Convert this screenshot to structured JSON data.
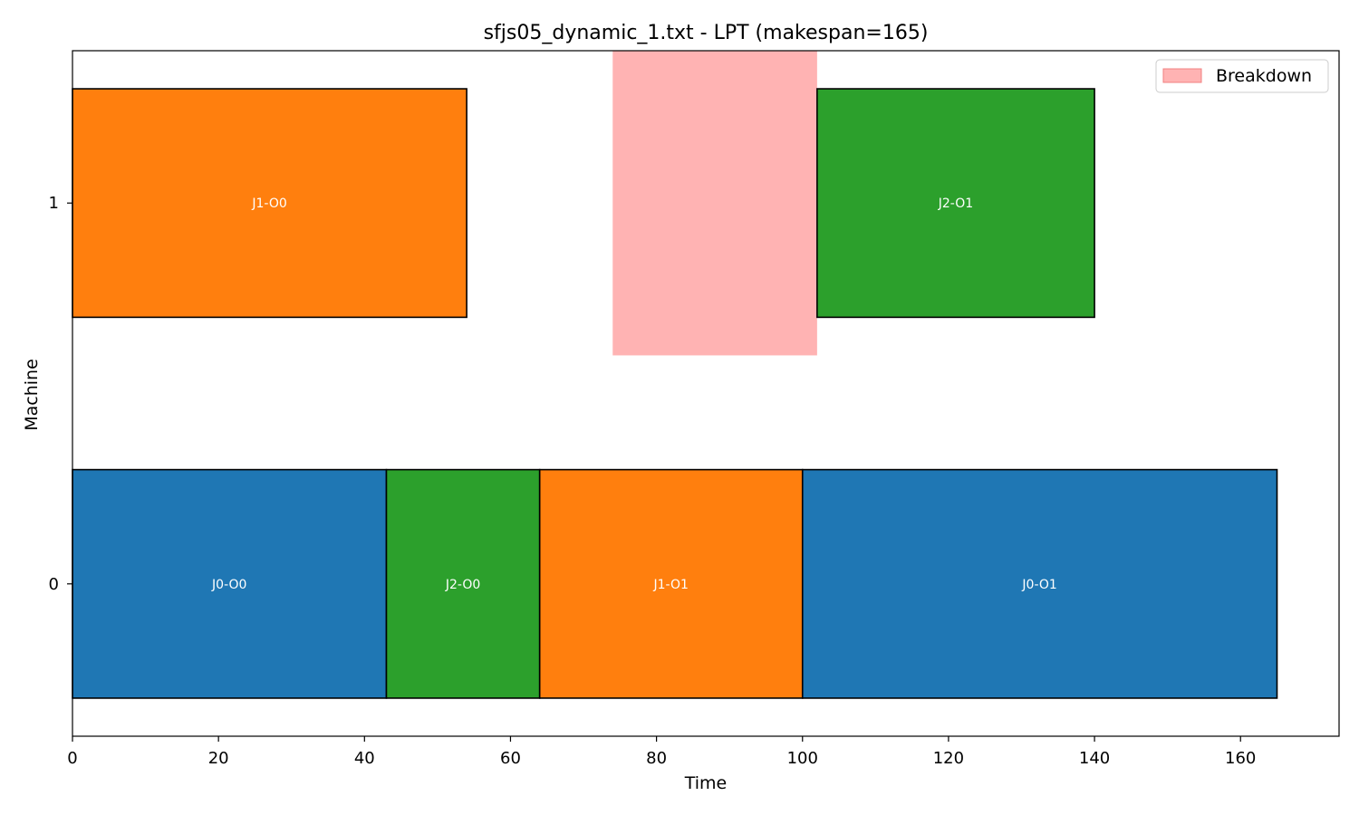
{
  "chart_data": {
    "type": "gantt",
    "title": "sfjs05_dynamic_1.txt - LPT (makespan=165)",
    "xlabel": "Time",
    "ylabel": "Machine",
    "xlim": [
      0,
      173.5
    ],
    "ylim": [
      -0.4,
      1.4
    ],
    "xticks": [
      0,
      20,
      40,
      60,
      80,
      100,
      120,
      140,
      160
    ],
    "yticks": [
      0,
      1
    ],
    "legend": {
      "position": "top-right",
      "entries": [
        {
          "label": "Breakdown",
          "color": "#ffb3b3"
        }
      ]
    },
    "colors": {
      "J0": "#1f77b4",
      "J1": "#ff7f0e",
      "J2": "#2ca02c",
      "breakdown": "#ffb3b3"
    },
    "operations": [
      {
        "label": "J0-O0",
        "job": "J0",
        "machine": 0,
        "start": 0,
        "end": 43
      },
      {
        "label": "J2-O0",
        "job": "J2",
        "machine": 0,
        "start": 43,
        "end": 64
      },
      {
        "label": "J1-O1",
        "job": "J1",
        "machine": 0,
        "start": 64,
        "end": 100
      },
      {
        "label": "J0-O1",
        "job": "J0",
        "machine": 0,
        "start": 100,
        "end": 165
      },
      {
        "label": "J1-O0",
        "job": "J1",
        "machine": 1,
        "start": 0,
        "end": 54
      },
      {
        "label": "J2-O1",
        "job": "J2",
        "machine": 1,
        "start": 102,
        "end": 140
      }
    ],
    "breakdowns": [
      {
        "machine": 1,
        "start": 74,
        "end": 102
      }
    ]
  }
}
